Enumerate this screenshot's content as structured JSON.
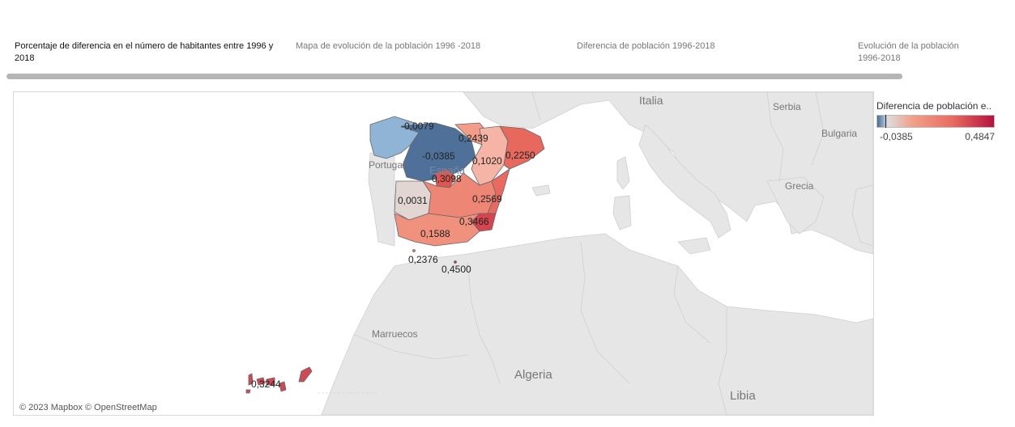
{
  "tabs": [
    {
      "label": "Porcentaje de diferencia en el número de habitantes entre 1996 y 2018",
      "active": true
    },
    {
      "label": "Mapa de evolución de la población 1996 -2018",
      "active": false
    },
    {
      "label": "Diferencia de población 1996-2018",
      "active": false
    },
    {
      "label": "Evolución de la población 1996-2018",
      "active": false
    }
  ],
  "map": {
    "basemap_labels": {
      "italia": "Italia",
      "serbia": "Serbia",
      "bulgaria": "Bulgaria",
      "grecia": "Grecia",
      "portugal": "Portugal",
      "espana": "España",
      "marruecos": "Marruecos",
      "algeria": "Algeria",
      "libia": "Libia"
    },
    "credit": "© 2023 Mapbox © OpenStreetMap",
    "regions": [
      {
        "name": "Galicia",
        "value": "-0,0079",
        "color": "#8fb4d6"
      },
      {
        "name": "Castilla y León",
        "value": "-0,0385",
        "color": "#4f7199"
      },
      {
        "name": "Navarra",
        "value": "0,2439",
        "color": "#f29c8a"
      },
      {
        "name": "Cataluña",
        "value": "0,2250",
        "color": "#e7695e"
      },
      {
        "name": "Aragón",
        "value": "0,1020",
        "color": "#f6b4a6"
      },
      {
        "name": "Madrid",
        "value": "0,3098",
        "color": "#e0554f"
      },
      {
        "name": "Extremadura",
        "value": "0,0031",
        "color": "#e2d6d3"
      },
      {
        "name": "Castilla-La Mancha",
        "value": "0,2569",
        "color": "#ee8676"
      },
      {
        "name": "Murcia",
        "value": "0,3466",
        "color": "#d6454f"
      },
      {
        "name": "Andalucía",
        "value": "0,1588",
        "color": "#f0917d"
      },
      {
        "name": "Ceuta",
        "value": "0,2376",
        "color": "#ea7a6a"
      },
      {
        "name": "Melilla",
        "value": "0,4500",
        "color": "#c52e45"
      },
      {
        "name": "Canarias",
        "value": "0,3244",
        "color": "#d04a55"
      }
    ]
  },
  "legend": {
    "title": "Diferencia de población e..",
    "min": "-0,0385",
    "max": "0,4847"
  }
}
